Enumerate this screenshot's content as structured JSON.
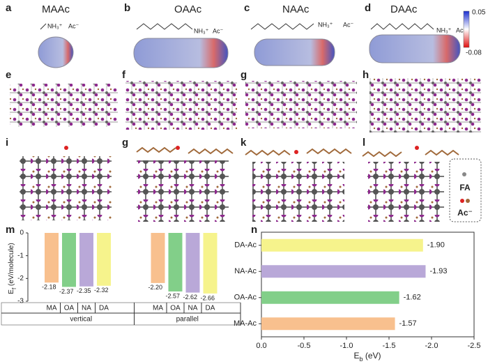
{
  "panel_labels": [
    "a",
    "b",
    "c",
    "d",
    "e",
    "f",
    "g",
    "h",
    "i",
    "g",
    "k",
    "l",
    "m",
    "n"
  ],
  "molecules": [
    {
      "name": "MAAc",
      "amine": "NH₃⁺",
      "acid": "Ac⁻"
    },
    {
      "name": "OAAc",
      "amine": "NH₃⁺",
      "acid": "Ac⁻"
    },
    {
      "name": "NAAc",
      "amine": "NH₃⁺",
      "acid": "Ac⁻"
    },
    {
      "name": "DAAc",
      "amine": "NH₃⁺",
      "acid": "Ac⁻"
    }
  ],
  "colorbar": {
    "max": 0.05,
    "min": -0.08
  },
  "legend": [
    "FA",
    "Ac⁻"
  ],
  "chart_data": [
    {
      "type": "bar",
      "ylabel": [
        "E",
        "f",
        " (eV/molecule)"
      ],
      "categories": [
        "MA",
        "OA",
        "NA",
        "DA"
      ],
      "colors": [
        "#f8c08e",
        "#82cf89",
        "#b9a8d8",
        "#f6f38c"
      ],
      "series": [
        {
          "name": "vertical",
          "values": [
            -2.18,
            -2.37,
            -2.35,
            -2.32
          ],
          "value_labels": [
            "-2.18",
            "-2.37",
            "-2.35",
            "-2.32"
          ]
        },
        {
          "name": "parallel",
          "values": [
            -2.2,
            -2.57,
            -2.62,
            -2.66
          ],
          "value_labels": [
            "-2.20",
            "-2.57",
            "-2.62",
            "-2.66"
          ]
        }
      ],
      "ylim": [
        -3,
        0
      ],
      "yticks": [
        0,
        -1,
        -2,
        -3
      ]
    },
    {
      "type": "barh",
      "xlabel": [
        "E",
        "b",
        " (eV)"
      ],
      "categories": [
        "MA-Ac",
        "OA-Ac",
        "NA-Ac",
        "DA-Ac"
      ],
      "values": [
        -1.57,
        -1.62,
        -1.93,
        -1.9
      ],
      "value_labels": [
        "-1.57",
        "-1.62",
        "-1.93",
        "-1.90"
      ],
      "colors": [
        "#f8c08e",
        "#82cf89",
        "#b9a8d8",
        "#f6f38c"
      ],
      "xlim": [
        0,
        -2.5
      ],
      "xticks": [
        {
          "value": 0,
          "label": "0.0"
        },
        -0.5,
        {
          "value": -1,
          "label": "-1.0"
        },
        -1.5,
        {
          "value": -2,
          "label": "-2.0"
        },
        -2.5
      ]
    }
  ]
}
